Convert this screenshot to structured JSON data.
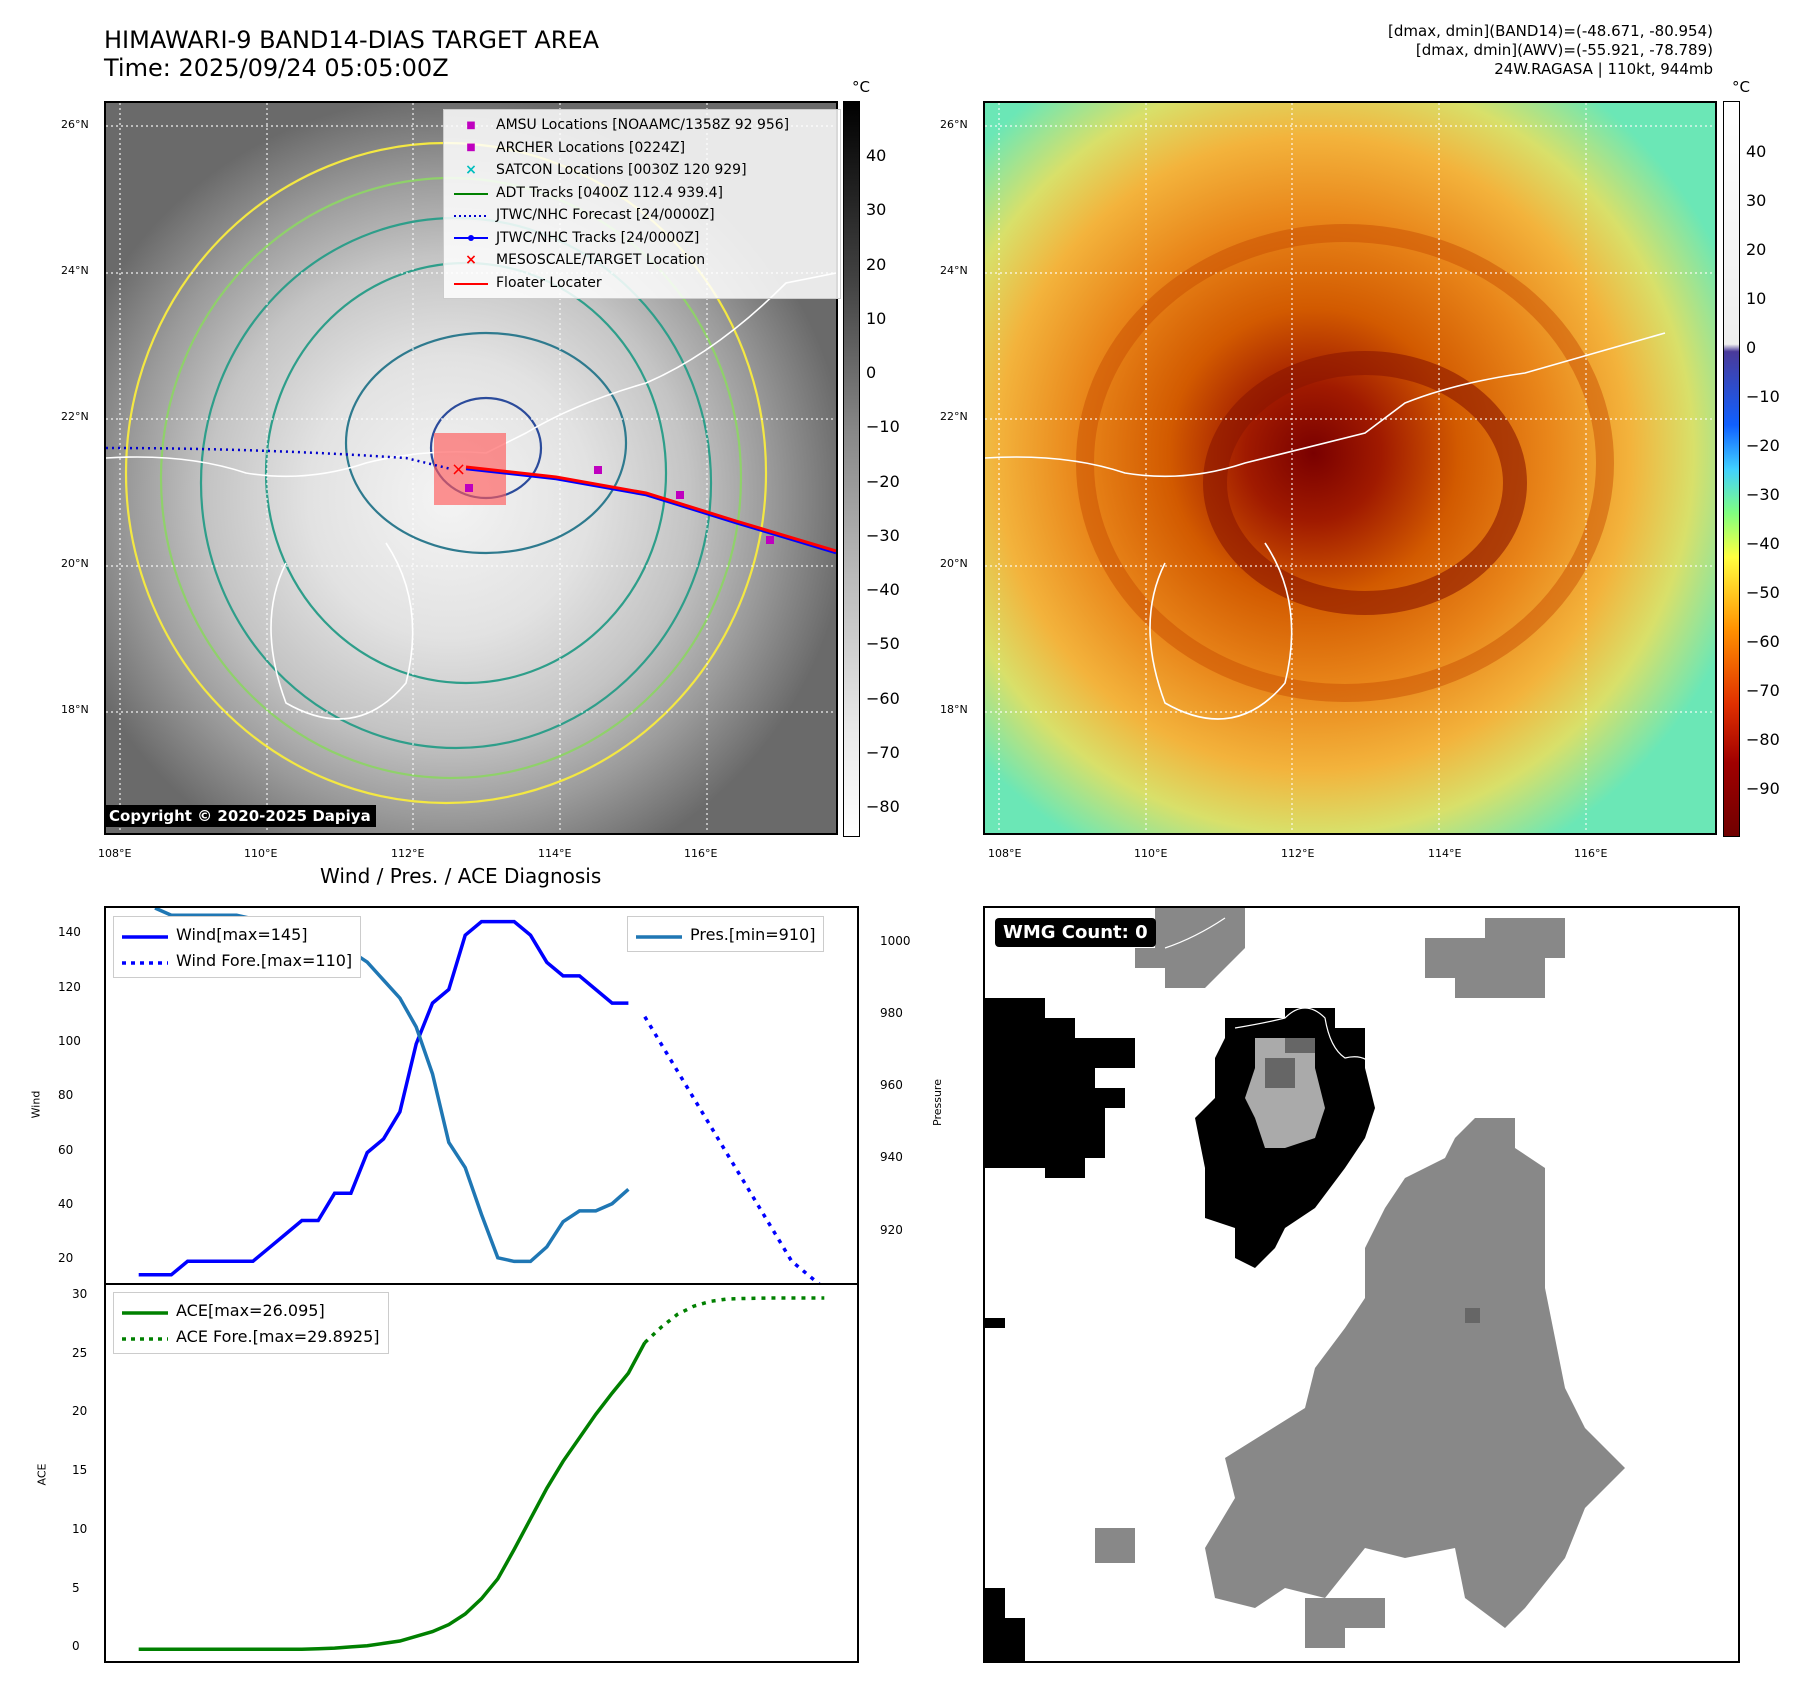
{
  "header": {
    "title_line1": "HIMAWARI-9 BAND14-DIAS TARGET AREA",
    "title_line2": "Time: 2025/09/24 05:05:00Z",
    "info_line1": "[dmax, dmin](BAND14)=(-48.671, -80.954)",
    "info_line2": "[dmax, dmin](AWV)=(-55.921, -78.789)",
    "info_line3": "24W.RAGASA | 110kt, 944mb"
  },
  "map_axes": {
    "lat_labels": [
      "26°N",
      "24°N",
      "22°N",
      "20°N",
      "18°N"
    ],
    "lon_labels": [
      "108°E",
      "110°E",
      "112°E",
      "114°E",
      "116°E"
    ]
  },
  "colorbar_gray": {
    "unit": "°C",
    "labels": [
      "40",
      "30",
      "20",
      "10",
      "0",
      "−10",
      "−20",
      "−30",
      "−40",
      "−50",
      "−60",
      "−70",
      "−80"
    ]
  },
  "colorbar_color": {
    "unit": "°C",
    "labels": [
      "40",
      "30",
      "20",
      "10",
      "0",
      "−10",
      "−20",
      "−30",
      "−40",
      "−50",
      "−60",
      "−70",
      "−80",
      "−90"
    ]
  },
  "legend_map": {
    "items": [
      {
        "label": "AMSU Locations [NOAAMC/1358Z 92 956]",
        "symbol": "■",
        "color": "#bf00bf"
      },
      {
        "label": "ARCHER Locations [0224Z]",
        "symbol": "■",
        "color": "#bf00bf"
      },
      {
        "label": "SATCON Locations [0030Z 120 929]",
        "symbol": "×",
        "color": "#00bfbf"
      },
      {
        "label": "ADT Tracks [0400Z 112.4 939.4]",
        "symbol": "line",
        "color": "#008000"
      },
      {
        "label": "JTWC/NHC Forecast [24/0000Z]",
        "symbol": "dots",
        "color": "#0000cc"
      },
      {
        "label": "JTWC/NHC Tracks [24/0000Z]",
        "symbol": "line-dot",
        "color": "#0000ff"
      },
      {
        "label": "MESOSCALE/TARGET Location",
        "symbol": "×",
        "color": "#ff0000"
      },
      {
        "label": "Floater Locater",
        "symbol": "line",
        "color": "#ff0000"
      }
    ]
  },
  "copyright": "Copyright © 2020-2025 Dapiya",
  "diagnosis": {
    "title": "Wind / Pres. / ACE Diagnosis",
    "wind_ylabel": "Wind",
    "pres_ylabel": "Pressure",
    "ace_ylabel": "ACE",
    "legend_wind": "Wind[max=145]",
    "legend_wind_fore": "Wind Fore.[max=110]",
    "legend_pres": "Pres.[min=910]",
    "legend_ace": "ACE[max=26.095]",
    "legend_ace_fore": "ACE Fore.[max=29.8925]",
    "wind_ticks": [
      "140",
      "120",
      "100",
      "80",
      "60",
      "40",
      "20"
    ],
    "pres_ticks": [
      "1000",
      "980",
      "960",
      "940",
      "920"
    ],
    "ace_ticks": [
      "30",
      "25",
      "20",
      "15",
      "10",
      "5",
      "0"
    ]
  },
  "wmg": {
    "label": "WMG Count: 0"
  },
  "colors": {
    "wind": "#0000ff",
    "pressure": "#1f77b4",
    "ace": "#008000"
  },
  "chart_data": [
    {
      "type": "line",
      "title": "Wind / Pres. / ACE Diagnosis",
      "ylabel": "Wind",
      "ylim": [
        12,
        150
      ],
      "series": [
        {
          "name": "Wind[max=145]",
          "x": [
            0,
            1,
            2,
            3,
            4,
            5,
            6,
            7,
            8,
            9,
            10,
            11,
            12,
            13,
            14,
            15,
            16,
            17,
            18,
            19,
            20,
            21,
            22,
            23,
            24,
            25,
            26,
            27,
            28,
            29,
            30
          ],
          "values": [
            15,
            15,
            15,
            20,
            20,
            20,
            20,
            20,
            25,
            30,
            35,
            35,
            45,
            45,
            60,
            65,
            75,
            100,
            115,
            120,
            140,
            145,
            145,
            145,
            140,
            130,
            125,
            125,
            120,
            115,
            115
          ]
        },
        {
          "name": "Wind Fore.[max=110]",
          "x": [
            31,
            32,
            33,
            34,
            35,
            36,
            37,
            38,
            39,
            40,
            41,
            42
          ],
          "values": [
            110,
            100,
            90,
            80,
            70,
            60,
            50,
            40,
            30,
            20,
            15,
            10
          ]
        }
      ]
    },
    {
      "type": "line",
      "ylabel": "Pressure",
      "ylim": [
        906,
        1010
      ],
      "series": [
        {
          "name": "Pres.[min=910]",
          "x": [
            1,
            2,
            3,
            4,
            5,
            6,
            7,
            8,
            9,
            10,
            11,
            12,
            13,
            14,
            15,
            16,
            17,
            18,
            19,
            20,
            21,
            22,
            23,
            24,
            25,
            26,
            27,
            28,
            29,
            30
          ],
          "values": [
            1010,
            1008,
            1008,
            1008,
            1008,
            1008,
            1007,
            1006,
            1006,
            1004,
            1002,
            1000,
            998,
            995,
            990,
            985,
            977,
            964,
            945,
            938,
            925,
            913,
            912,
            912,
            916,
            923,
            926,
            926,
            928,
            932
          ]
        }
      ]
    },
    {
      "type": "line",
      "ylabel": "ACE",
      "ylim": [
        -1,
        31
      ],
      "series": [
        {
          "name": "ACE[max=26.095]",
          "x": [
            0,
            2,
            4,
            6,
            8,
            10,
            11,
            12,
            13,
            14,
            15,
            16,
            17,
            18,
            19,
            20,
            21,
            22,
            23,
            24,
            25,
            26,
            27,
            28,
            29,
            30,
            31
          ],
          "values": [
            0,
            0,
            0,
            0,
            0,
            0,
            0.05,
            0.1,
            0.2,
            0.3,
            0.5,
            0.7,
            1.1,
            1.5,
            2.1,
            3,
            4.3,
            6,
            8.5,
            11.1,
            13.7,
            16,
            18,
            20,
            21.8,
            23.5,
            26.1
          ]
        },
        {
          "name": "ACE Fore.[max=29.8925]",
          "x": [
            31,
            32,
            33,
            34,
            35,
            36,
            37,
            38,
            39,
            40,
            41,
            42
          ],
          "values": [
            26.1,
            27.4,
            28.5,
            29.2,
            29.6,
            29.8,
            29.85,
            29.88,
            29.89,
            29.89,
            29.89,
            29.89
          ]
        }
      ]
    }
  ]
}
